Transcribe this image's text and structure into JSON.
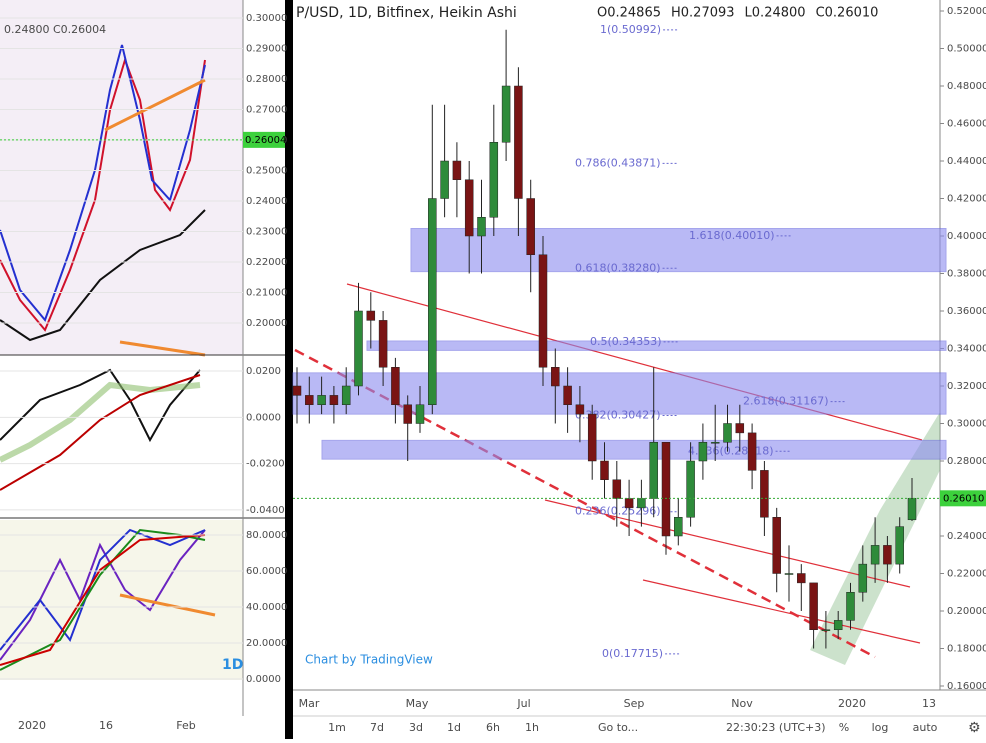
{
  "left_panel": {
    "header": "0.24800  C0.26004",
    "interval": "1D",
    "price_axis": {
      "lim": [
        0.1895,
        0.3059
      ],
      "ticks": [
        {
          "value": 0.3,
          "label": "0.30000"
        },
        {
          "value": 0.29,
          "label": "0.29000"
        },
        {
          "value": 0.28,
          "label": "0.28000"
        },
        {
          "value": 0.27,
          "label": "0.27000"
        },
        {
          "value": 0.26,
          "label": "0.26000"
        },
        {
          "value": 0.25,
          "label": "0.25000"
        },
        {
          "value": 0.24,
          "label": "0.24000"
        },
        {
          "value": 0.23,
          "label": "0.23000"
        },
        {
          "value": 0.22,
          "label": "0.22000"
        },
        {
          "value": 0.21,
          "label": "0.21000"
        },
        {
          "value": 0.2,
          "label": "0.20000"
        }
      ],
      "last_price": {
        "value": 0.26004,
        "label": "0.26004"
      }
    },
    "oscillator_axis": {
      "lim": [
        -0.0435,
        0.0265
      ],
      "ticks": [
        {
          "value": 0.02,
          "label": "0.0200"
        },
        {
          "value": 0,
          "label": "0.0000"
        },
        {
          "value": -0.02,
          "label": "-0.0200"
        },
        {
          "value": -0.04,
          "label": "-0.0400"
        }
      ]
    },
    "stoch_axis": {
      "lim": [
        -20,
        88.3
      ],
      "ticks": [
        {
          "value": 80,
          "label": "80.0000"
        },
        {
          "value": 60,
          "label": "60.0000"
        },
        {
          "value": 40,
          "label": "40.0000"
        },
        {
          "value": 20,
          "label": "20.0000"
        },
        {
          "value": 0,
          "label": "0.0000"
        }
      ]
    },
    "time_labels": [
      "2020",
      "16",
      "Feb"
    ]
  },
  "main_chart": {
    "title": "P/USD, 1D, Bitfinex, Heikin Ashi",
    "ohlc_header": [
      "O0.24865",
      "H0.27093",
      "L0.24800",
      "C0.26010"
    ],
    "ylim": [
      0.16,
      0.52
    ],
    "yticks": [
      {
        "value": 0.52,
        "label": "0.52000"
      },
      {
        "value": 0.5,
        "label": "0.50000"
      },
      {
        "value": 0.48,
        "label": "0.48000"
      },
      {
        "value": 0.46,
        "label": "0.46000"
      },
      {
        "value": 0.44,
        "label": "0.44000"
      },
      {
        "value": 0.42,
        "label": "0.42000"
      },
      {
        "value": 0.4,
        "label": "0.40000"
      },
      {
        "value": 0.38,
        "label": "0.38000"
      },
      {
        "value": 0.36,
        "label": "0.36000"
      },
      {
        "value": 0.34,
        "label": "0.34000"
      },
      {
        "value": 0.32,
        "label": "0.32000"
      },
      {
        "value": 0.3,
        "label": "0.30000"
      },
      {
        "value": 0.28,
        "label": "0.28000"
      },
      {
        "value": 0.26,
        "label": "0.26000"
      },
      {
        "value": 0.24,
        "label": "0.24000"
      },
      {
        "value": 0.22,
        "label": "0.22000"
      },
      {
        "value": 0.2,
        "label": "0.20000"
      },
      {
        "value": 0.18,
        "label": "0.18000"
      },
      {
        "value": 0.16,
        "label": "0.16000"
      }
    ],
    "candles": {
      "open": [
        0.32,
        0.315,
        0.31,
        0.315,
        0.31,
        0.32,
        0.36,
        0.355,
        0.33,
        0.31,
        0.3,
        0.31,
        0.42,
        0.44,
        0.43,
        0.4,
        0.41,
        0.45,
        0.48,
        0.42,
        0.39,
        0.33,
        0.32,
        0.31,
        0.305,
        0.28,
        0.27,
        0.26,
        0.255,
        0.26,
        0.29,
        0.24,
        0.25,
        0.28,
        0.29,
        0.29,
        0.3,
        0.295,
        0.275,
        0.25,
        0.22,
        0.22,
        0.215,
        0.19,
        0.19,
        0.195,
        0.21,
        0.225,
        0.235,
        0.225,
        0.24865
      ],
      "high": [
        0.33,
        0.325,
        0.325,
        0.32,
        0.33,
        0.375,
        0.37,
        0.36,
        0.335,
        0.315,
        0.32,
        0.47,
        0.47,
        0.45,
        0.44,
        0.43,
        0.47,
        0.51,
        0.49,
        0.43,
        0.4,
        0.34,
        0.33,
        0.32,
        0.31,
        0.29,
        0.28,
        0.27,
        0.27,
        0.33,
        0.29,
        0.26,
        0.29,
        0.3,
        0.31,
        0.31,
        0.31,
        0.3,
        0.28,
        0.255,
        0.235,
        0.225,
        0.215,
        0.2,
        0.2,
        0.215,
        0.235,
        0.25,
        0.24,
        0.25,
        0.27093
      ],
      "low": [
        0.3,
        0.3,
        0.305,
        0.3,
        0.305,
        0.315,
        0.34,
        0.32,
        0.3,
        0.28,
        0.295,
        0.305,
        0.41,
        0.41,
        0.38,
        0.38,
        0.4,
        0.44,
        0.4,
        0.37,
        0.32,
        0.3,
        0.295,
        0.29,
        0.27,
        0.26,
        0.245,
        0.24,
        0.245,
        0.25,
        0.23,
        0.235,
        0.245,
        0.27,
        0.28,
        0.285,
        0.285,
        0.265,
        0.24,
        0.21,
        0.205,
        0.2,
        0.18,
        0.18,
        0.185,
        0.19,
        0.205,
        0.215,
        0.215,
        0.22,
        0.248
      ],
      "close": [
        0.315,
        0.31,
        0.315,
        0.31,
        0.32,
        0.36,
        0.355,
        0.33,
        0.31,
        0.3,
        0.31,
        0.42,
        0.44,
        0.43,
        0.4,
        0.41,
        0.45,
        0.48,
        0.42,
        0.39,
        0.33,
        0.32,
        0.31,
        0.305,
        0.28,
        0.27,
        0.26,
        0.255,
        0.26,
        0.29,
        0.24,
        0.25,
        0.28,
        0.29,
        0.29,
        0.3,
        0.295,
        0.275,
        0.25,
        0.22,
        0.22,
        0.215,
        0.19,
        0.19,
        0.195,
        0.21,
        0.225,
        0.235,
        0.225,
        0.245,
        0.2601
      ]
    },
    "last_price": {
      "value": 0.2601,
      "label": "0.26010"
    },
    "zones": [
      [
        0.404,
        0.381
      ],
      [
        0.344,
        0.339
      ],
      [
        0.327,
        0.305
      ],
      [
        0.291,
        0.281
      ]
    ],
    "fib_levels": [
      {
        "value": 0.50992,
        "label": "1(0.50992)"
      },
      {
        "value": 0.43871,
        "label": "0.786(0.43871)"
      },
      {
        "value": 0.4001,
        "label": "1.618(0.40010)"
      },
      {
        "value": 0.3828,
        "label": "0.618(0.38280)"
      },
      {
        "value": 0.34353,
        "label": "0.5(0.34353)"
      },
      {
        "value": 0.31167,
        "label": "2.618(0.31167)"
      },
      {
        "value": 0.30427,
        "label": "0.382(0.30427)"
      },
      {
        "value": 0.28518,
        "label": "4.236(0.28518)"
      },
      {
        "value": 0.25296,
        "label": "0.236(0.25296)"
      },
      {
        "value": 0.17715,
        "label": "0(0.17715)"
      }
    ],
    "time_labels": [
      "Mar",
      "May",
      "Jul",
      "Sep",
      "Nov",
      "2020",
      "13"
    ],
    "watermark": "Chart by TradingView"
  },
  "toolbar": {
    "ranges": [
      "1m",
      "7d",
      "3d",
      "1d",
      "6h",
      "1h"
    ],
    "goto": "Go to...",
    "clock": "22:30:23 (UTC+3)",
    "options": [
      "%",
      "log",
      "auto"
    ]
  }
}
